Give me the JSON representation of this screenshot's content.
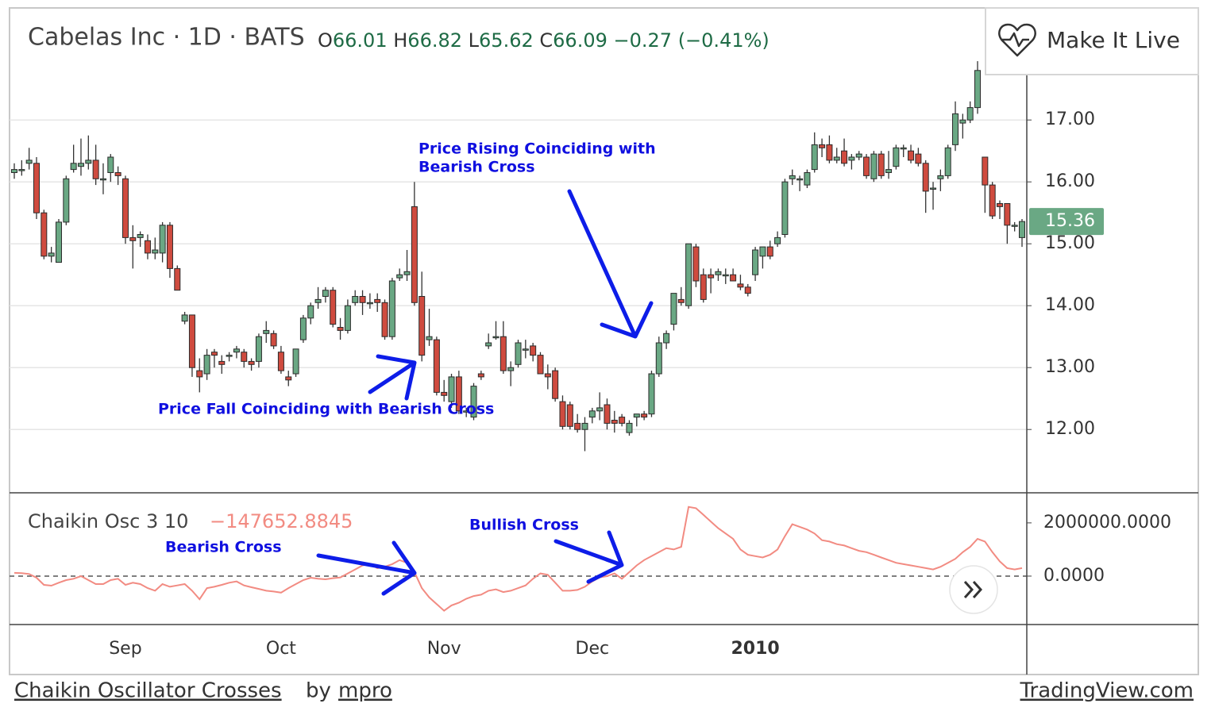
{
  "header": {
    "title": "Cabelas Inc · 1D · BATS",
    "ohlc": [
      {
        "label": "O",
        "value": "66.01"
      },
      {
        "label": "H",
        "value": "66.82"
      },
      {
        "label": "L",
        "value": "65.62"
      },
      {
        "label": "C",
        "value": "66.09"
      }
    ],
    "change": "−0.27 (−0.41%)",
    "button": "Make It Live"
  },
  "footer": {
    "idea": "Chaikin Oscillator Crosses",
    "by": "by",
    "author": "mpro",
    "site": "TradingView.com"
  },
  "chart_data": [
    {
      "type": "candlestick",
      "color_up": "#6aa884",
      "color_down": "#cf4b3f",
      "categories": [
        null,
        null,
        null,
        null,
        null,
        null,
        null,
        null,
        null,
        null,
        null,
        null,
        null,
        null,
        null,
        "Sep",
        null,
        null,
        null,
        null,
        null,
        null,
        null,
        null,
        null,
        null,
        null,
        null,
        null,
        null,
        null,
        null,
        null,
        null,
        null,
        null,
        "Oct",
        null,
        null,
        null,
        null,
        null,
        null,
        null,
        null,
        null,
        null,
        null,
        null,
        null,
        null,
        null,
        null,
        null,
        null,
        null,
        null,
        null,
        "Nov",
        null,
        null,
        null,
        null,
        null,
        null,
        null,
        null,
        null,
        null,
        null,
        null,
        null,
        null,
        null,
        null,
        null,
        null,
        null,
        "Dec",
        null,
        null,
        null,
        null,
        null,
        null,
        null,
        null,
        null,
        null,
        null,
        null,
        null,
        null,
        null,
        null,
        null,
        null,
        null,
        null,
        null,
        "2010",
        null,
        null,
        null,
        null,
        null,
        null,
        null,
        null,
        null,
        null,
        null,
        null,
        null,
        null,
        null,
        null,
        null,
        null,
        null,
        null,
        null,
        null,
        null,
        null,
        null,
        null,
        null,
        null,
        null,
        null,
        null,
        null,
        null,
        null,
        null,
        null
      ],
      "open": [
        16.15,
        16.2,
        16.3,
        16.3,
        15.5,
        14.8,
        14.7,
        15.35,
        16.2,
        16.25,
        16.3,
        16.35,
        16.05,
        16.15,
        16.15,
        16.05,
        15.1,
        15.1,
        15.05,
        14.85,
        14.85,
        15.3,
        14.6,
        13.75,
        13.85,
        12.95,
        12.9,
        13.25,
        13.1,
        13.2,
        13.25,
        13.25,
        13.1,
        13.1,
        13.55,
        13.55,
        13.25,
        12.85,
        12.9,
        13.45,
        13.8,
        14.05,
        14.15,
        14.25,
        13.65,
        13.6,
        14.05,
        14.15,
        14.05,
        14.1,
        14.05,
        13.5,
        14.45,
        14.5,
        15.6,
        14.15,
        13.45,
        13.45,
        12.6,
        12.45,
        12.85,
        12.3,
        12.2,
        12.9,
        13.35,
        13.5,
        13.5,
        12.95,
        13.05,
        13.3,
        13.35,
        13.2,
        12.9,
        12.95,
        12.45,
        12.4,
        12.1,
        12.0,
        12.2,
        12.3,
        12.4,
        12.15,
        12.2,
        11.95,
        12.2,
        12.25,
        12.25,
        12.9,
        13.4,
        13.7,
        14.1,
        14.0,
        14.95,
        14.5,
        14.5,
        14.5,
        14.5,
        14.5,
        14.35,
        14.3,
        14.5,
        14.8,
        14.95,
        15.0,
        15.15,
        16.05,
        16.05,
        15.95,
        16.2,
        16.6,
        16.6,
        16.35,
        16.5,
        16.35,
        16.4,
        16.4,
        16.05,
        16.45,
        16.15,
        16.25,
        16.55,
        16.5,
        16.45,
        16.3,
        15.9,
        16.05,
        16.1,
        16.6,
        16.95,
        17.0,
        17.2,
        16.4,
        15.95,
        15.65,
        15.65,
        15.3,
        15.1
      ],
      "high": [
        16.3,
        16.35,
        16.55,
        16.4,
        15.55,
        14.95,
        15.4,
        16.1,
        16.6,
        16.7,
        16.75,
        16.6,
        16.3,
        16.45,
        16.25,
        16.1,
        15.3,
        15.2,
        15.15,
        15.1,
        15.35,
        15.35,
        14.65,
        13.9,
        13.85,
        13.15,
        13.3,
        13.3,
        13.2,
        13.25,
        13.35,
        13.3,
        13.15,
        13.55,
        13.75,
        13.6,
        13.35,
        12.95,
        13.3,
        13.85,
        14.05,
        14.3,
        14.3,
        14.3,
        13.8,
        14.1,
        14.25,
        14.25,
        14.2,
        14.2,
        14.1,
        14.45,
        14.6,
        14.9,
        16.0,
        14.55,
        13.95,
        13.5,
        12.8,
        12.9,
        12.95,
        12.35,
        12.75,
        12.95,
        13.55,
        13.75,
        13.75,
        13.1,
        13.45,
        13.45,
        13.4,
        13.25,
        13.05,
        13.0,
        12.55,
        12.45,
        12.25,
        12.2,
        12.35,
        12.6,
        12.5,
        12.3,
        12.25,
        12.15,
        12.25,
        12.3,
        12.95,
        13.5,
        13.6,
        14.2,
        14.3,
        15.0,
        15.0,
        14.6,
        14.6,
        14.6,
        14.6,
        14.6,
        14.5,
        14.35,
        14.95,
        14.95,
        15.05,
        15.2,
        16.05,
        16.2,
        16.1,
        16.2,
        16.8,
        16.7,
        16.75,
        16.55,
        16.7,
        16.45,
        16.5,
        16.45,
        16.5,
        16.5,
        16.5,
        16.6,
        16.6,
        16.6,
        16.55,
        16.35,
        16.0,
        16.2,
        16.6,
        17.3,
        17.1,
        17.3,
        17.95,
        16.4,
        16.0,
        15.7,
        15.65,
        15.35,
        15.4
      ],
      "low": [
        16.05,
        16.1,
        16.2,
        15.4,
        14.75,
        14.7,
        14.7,
        15.3,
        16.15,
        16.1,
        16.2,
        15.95,
        15.8,
        16.0,
        15.95,
        15.0,
        14.6,
        14.95,
        14.75,
        14.75,
        14.7,
        14.45,
        14.25,
        13.7,
        12.85,
        12.6,
        12.8,
        13.0,
        12.9,
        13.1,
        13.15,
        13.0,
        12.95,
        13.0,
        13.4,
        13.3,
        12.9,
        12.7,
        12.85,
        13.4,
        13.7,
        13.95,
        14.05,
        13.65,
        13.45,
        13.55,
        14.0,
        13.85,
        13.95,
        13.9,
        13.45,
        13.45,
        14.4,
        14.4,
        14.0,
        13.1,
        13.35,
        12.55,
        12.45,
        12.35,
        12.25,
        12.2,
        12.15,
        12.8,
        13.3,
        13.45,
        12.9,
        12.7,
        13.0,
        13.15,
        13.1,
        12.9,
        12.65,
        12.45,
        12.0,
        12.0,
        11.95,
        11.65,
        12.1,
        12.15,
        12.0,
        11.95,
        12.05,
        11.9,
        12.05,
        12.15,
        12.2,
        12.85,
        13.3,
        13.6,
        14.0,
        13.95,
        14.3,
        14.05,
        14.2,
        14.4,
        14.35,
        14.4,
        14.25,
        14.15,
        14.4,
        14.6,
        14.75,
        14.95,
        15.1,
        15.95,
        15.85,
        15.9,
        16.15,
        16.4,
        16.3,
        16.3,
        16.25,
        16.2,
        16.35,
        16.05,
        16.0,
        16.05,
        16.05,
        16.2,
        16.4,
        16.3,
        16.25,
        15.5,
        15.55,
        15.85,
        16.05,
        16.5,
        16.7,
        16.95,
        17.1,
        15.5,
        15.4,
        15.4,
        15.0,
        15.2,
        14.95
      ],
      "close": [
        16.2,
        16.2,
        16.35,
        15.5,
        14.8,
        14.85,
        15.35,
        16.05,
        16.3,
        16.3,
        16.35,
        16.05,
        16.05,
        16.4,
        16.1,
        15.1,
        15.05,
        15.15,
        14.85,
        14.9,
        15.3,
        14.6,
        14.25,
        13.85,
        13.0,
        12.85,
        13.2,
        13.2,
        13.05,
        13.2,
        13.3,
        13.1,
        13.05,
        13.5,
        13.6,
        13.35,
        12.95,
        12.8,
        13.3,
        13.8,
        14.0,
        14.1,
        14.25,
        13.7,
        13.6,
        14.0,
        14.15,
        14.05,
        14.05,
        14.05,
        13.5,
        14.4,
        14.5,
        14.55,
        14.05,
        13.2,
        13.5,
        12.6,
        12.55,
        12.85,
        12.3,
        12.3,
        12.7,
        12.85,
        13.4,
        13.5,
        12.95,
        13.0,
        13.4,
        13.3,
        13.2,
        12.9,
        12.85,
        12.5,
        12.05,
        12.05,
        12.0,
        12.1,
        12.3,
        12.35,
        12.1,
        12.1,
        12.1,
        12.1,
        12.25,
        12.2,
        12.9,
        13.4,
        13.55,
        14.2,
        14.05,
        15.0,
        14.4,
        14.1,
        14.45,
        14.55,
        14.5,
        14.4,
        14.3,
        14.2,
        14.9,
        14.95,
        14.8,
        15.1,
        16.0,
        16.1,
        16.05,
        16.15,
        16.6,
        16.55,
        16.35,
        16.4,
        16.3,
        16.4,
        16.45,
        16.1,
        16.45,
        16.1,
        16.2,
        16.55,
        16.55,
        16.35,
        16.3,
        15.85,
        15.9,
        16.1,
        16.55,
        17.1,
        17.0,
        17.2,
        17.8,
        15.95,
        15.45,
        15.6,
        15.3,
        15.3,
        15.36
      ],
      "ylim": [
        10.99,
        18.81
      ],
      "yticks": [
        {
          "value": 12,
          "label": "12.00"
        },
        {
          "value": 13,
          "label": "13.00"
        },
        {
          "value": 14,
          "label": "14.00"
        },
        {
          "value": 15,
          "label": "15.00"
        },
        {
          "value": 16,
          "label": "16.00"
        },
        {
          "value": 17,
          "label": "17.00"
        }
      ],
      "grid": true,
      "annotations": [
        "Price Rising Coinciding with",
        "Bearish Cross",
        "Price Fall Coinciding with Bearish Cross"
      ]
    },
    {
      "type": "line",
      "name": "Chaikin Osc 3 10",
      "current": "−147652.8845",
      "color": "#f28b82",
      "values": [
        120000,
        110000,
        80000,
        -60000,
        -330000,
        -360000,
        -250000,
        -150000,
        -100000,
        0,
        -150000,
        -300000,
        -300000,
        -150000,
        -100000,
        -330000,
        -250000,
        -300000,
        -450000,
        -550000,
        -300000,
        -400000,
        -350000,
        -300000,
        -550000,
        -870000,
        -450000,
        -400000,
        -330000,
        -250000,
        -200000,
        -350000,
        -420000,
        -480000,
        -550000,
        -580000,
        -620000,
        -450000,
        -300000,
        -150000,
        -60000,
        -100000,
        -120000,
        -80000,
        -50000,
        100000,
        250000,
        400000,
        450000,
        300000,
        350000,
        450000,
        600000,
        500000,
        150000,
        -450000,
        -800000,
        -1050000,
        -1300000,
        -1100000,
        -1000000,
        -850000,
        -750000,
        -700000,
        -550000,
        -500000,
        -600000,
        -550000,
        -450000,
        -350000,
        -100000,
        100000,
        50000,
        -250000,
        -550000,
        -550000,
        -520000,
        -400000,
        -200000,
        -50000,
        0,
        100000,
        -100000,
        150000,
        400000,
        600000,
        750000,
        900000,
        1050000,
        1000000,
        1100000,
        2600000,
        2550000,
        2300000,
        2050000,
        1800000,
        1600000,
        1400000,
        1000000,
        800000,
        750000,
        700000,
        800000,
        1000000,
        1500000,
        1950000,
        1850000,
        1750000,
        1600000,
        1350000,
        1300000,
        1200000,
        1150000,
        1050000,
        950000,
        900000,
        800000,
        700000,
        600000,
        500000,
        450000,
        400000,
        350000,
        300000,
        250000,
        350000,
        500000,
        650000,
        900000,
        1100000,
        1400000,
        1300000,
        900000,
        550000,
        300000,
        250000,
        300000
      ],
      "ylim": [
        -1820000,
        3100000
      ],
      "yticks": [
        {
          "value": 0,
          "label": "0.0000"
        },
        {
          "value": 2000000,
          "label": "2000000.0000"
        }
      ],
      "annotations": [
        "Bearish Cross",
        "Bullish Cross"
      ]
    }
  ]
}
